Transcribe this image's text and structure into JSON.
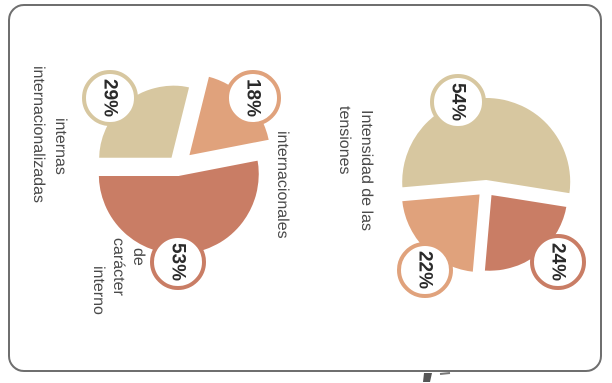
{
  "chart_data": [
    {
      "type": "pie",
      "title": "",
      "slices": [
        {
          "label": "internas internacionalizadas",
          "value": 29,
          "value_label": "29%",
          "color": "#d7c7a0"
        },
        {
          "label": "internacionales",
          "value": 18,
          "value_label": "18%",
          "color": "#e0a27c"
        },
        {
          "label": "de carácter interno",
          "value": 53,
          "value_label": "53%",
          "color": "#c97d65"
        }
      ],
      "legend": "labels beside slices",
      "grid": false
    },
    {
      "type": "pie",
      "title": "Intensidad de las tensiones",
      "slices": [
        {
          "label": "",
          "value": 54,
          "value_label": "54%",
          "color": "#d7c7a0"
        },
        {
          "label": "",
          "value": 24,
          "value_label": "24%",
          "color": "#c97d65"
        },
        {
          "label": "",
          "value": 22,
          "value_label": "22%",
          "color": "#e0a27c"
        }
      ],
      "legend": "none",
      "grid": false
    }
  ],
  "colors": {
    "border": "#6f6f6f",
    "text": "#4a4a4a",
    "value_text": "#2b2b2b",
    "badge_fill": "#ffffff"
  }
}
